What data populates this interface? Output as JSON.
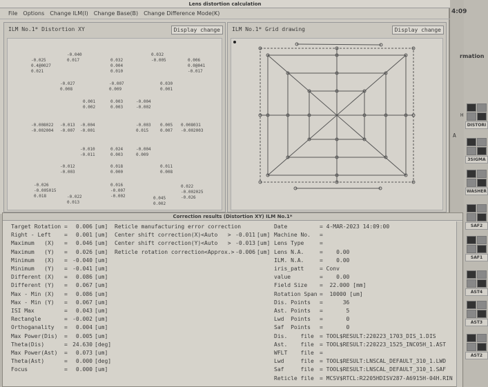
{
  "window_title": "Lens distortion calculation",
  "menu": [
    "File",
    "Options",
    "Change ILM(I)",
    "Change Base(B)",
    "Change Difference Mode(K)"
  ],
  "side": {
    "clock": "4:09",
    "info": "rmation",
    "letter_h": "H",
    "letter_a": "A",
    "buttons": [
      "DISTORI",
      "3SIGMA",
      "WASHER",
      "SAF2",
      "SAF1",
      "AST4",
      "AST3",
      "AST2"
    ]
  },
  "left_panel": {
    "title": "ILM No.1* Distortion XY",
    "button": "Display change"
  },
  "right_panel": {
    "title": "ILM No.1* Grid drawing",
    "button": "Display change"
  },
  "distortion_values": [
    [
      "-0.040",
      "0.017"
    ],
    [
      "-0.025",
      "0.4@0027",
      "0.021"
    ],
    [
      "0.032",
      "0.004",
      "0.010"
    ],
    [
      "0.032",
      "-0.005"
    ],
    [
      "0.006",
      "0.0@041",
      "-0.017"
    ],
    [
      "-0.027",
      "0.008"
    ],
    [
      "-0.007",
      "0.009"
    ],
    [
      "0.030",
      "0.001"
    ],
    [
      "0.001",
      "0.002"
    ],
    [
      "0.003",
      "0.003"
    ],
    [
      "-0.004",
      "-0.002"
    ],
    [
      "-0.008022",
      "-0.002004"
    ],
    [
      "-0.013",
      "-0.007"
    ],
    [
      "-0.004",
      "-0.001"
    ],
    [
      "-0.003",
      "0.015"
    ],
    [
      "0.005",
      "0.007"
    ],
    [
      "0.008031",
      "-0.002003"
    ],
    [
      "-0.010",
      "-0.011"
    ],
    [
      "0.024",
      "0.003"
    ],
    [
      "-0.004",
      "0.009"
    ],
    [
      "-0.012",
      "-0.003"
    ],
    [
      "0.018",
      "0.000"
    ],
    [
      "0.011",
      "0.008"
    ],
    [
      "-0.026",
      "-0.005015",
      "0.018"
    ],
    [
      "-0.022",
      "0.013"
    ],
    [
      "0.016",
      "-0.007",
      "-0.002"
    ],
    [
      "0.045",
      "0.002"
    ],
    [
      "0.022",
      "-0.002025",
      "-0.026"
    ]
  ],
  "results": {
    "title": "Correction results (Distortion XY) ILM No.1*",
    "left": [
      [
        "Target Rotation",
        "=",
        "0.006",
        "[um]"
      ],
      [
        "Right - Left",
        "=",
        "0.001",
        "[um]"
      ],
      [
        "Maximum   (X)",
        "=",
        "0.046",
        "[um]"
      ],
      [
        "Maximum   (Y)",
        "=",
        "0.026",
        "[um]"
      ],
      [
        "Minimum   (X)",
        "=",
        "-0.040",
        "[um]"
      ],
      [
        "Minimum   (Y)",
        "=",
        "-0.041",
        "[um]"
      ],
      [
        "Different (X)",
        "=",
        "0.086",
        "[um]"
      ],
      [
        "Different (Y)",
        "=",
        "0.067",
        "[um]"
      ],
      [
        "Max - Min (X)",
        "=",
        "0.086",
        "[um]"
      ],
      [
        "Max - Min (Y)",
        "=",
        "0.067",
        "[um]"
      ],
      [
        "ISI Max",
        "=",
        "0.043",
        "[um]"
      ],
      [
        "Rectangle",
        "=",
        "-0.002",
        "[um]"
      ],
      [
        "Orthoganality",
        "=",
        "0.004",
        "[um]"
      ],
      [
        "Max Power(Dis)",
        "=",
        "0.005",
        "[um]"
      ],
      [
        "Theta(Dis)",
        "=",
        "24.630",
        "[deg]"
      ],
      [
        "Max Power(Ast)",
        "=",
        "0.073",
        "[um]"
      ],
      [
        "Theta(Ast)",
        "=",
        "0.000",
        "[deg]"
      ],
      [
        "Focus",
        "=",
        "0.000",
        "[um]"
      ]
    ],
    "middle": [
      [
        "Reticle manufacturing error correction",
        "",
        ""
      ],
      [
        "Center shift correction(X)<Auto   >",
        "-0.011",
        "[um]"
      ],
      [
        "Center shift correction(Y)<Auto   >",
        "-0.013",
        "[um]"
      ],
      [
        "Reticle rotation correction<Approx.>",
        "-0.006",
        "[um]"
      ]
    ],
    "right": [
      [
        "Date",
        "= 4-MAR-2023 14:09:00"
      ],
      [
        "Machine No.",
        "="
      ],
      [
        "Lens Type",
        "="
      ],
      [
        "Lens N.A.",
        "=    0.00"
      ],
      [
        "ILM. N.A.",
        "=    0.00"
      ],
      [
        "iris_patt",
        "= Conv"
      ],
      [
        "value",
        "=    0.00"
      ],
      [
        "Field Size",
        "=  22.000 [mm]"
      ],
      [
        "Rotation Span",
        "=  10000 [um]"
      ],
      [
        "Dis. Points",
        "=      36"
      ],
      [
        "Ast. Points",
        "=       5"
      ],
      [
        "Lwd  Points",
        "=       0"
      ],
      [
        "Saf  Points",
        "=       0"
      ],
      [
        "Dis.    file",
        "= TOOL$RESULT:220223_1703_DIS_1.DIS"
      ],
      [
        "Ast.    file",
        "= TOOL$RESULT:220223_1525_INC05H_1.AST"
      ],
      [
        "WFLT    file",
        "="
      ],
      [
        "Lwd     file",
        "= TOOL$RESULT:LNSCAL_DEFAULT_310_1.LWD"
      ],
      [
        "Saf     file",
        "= TOOL$RESULT:LNSCAL_DEFAULT_310_1.SAF"
      ],
      [
        "Reticle file",
        "= MCSV$RTCL:R2205HDISV287-A6915H-04H.RIN"
      ]
    ]
  }
}
